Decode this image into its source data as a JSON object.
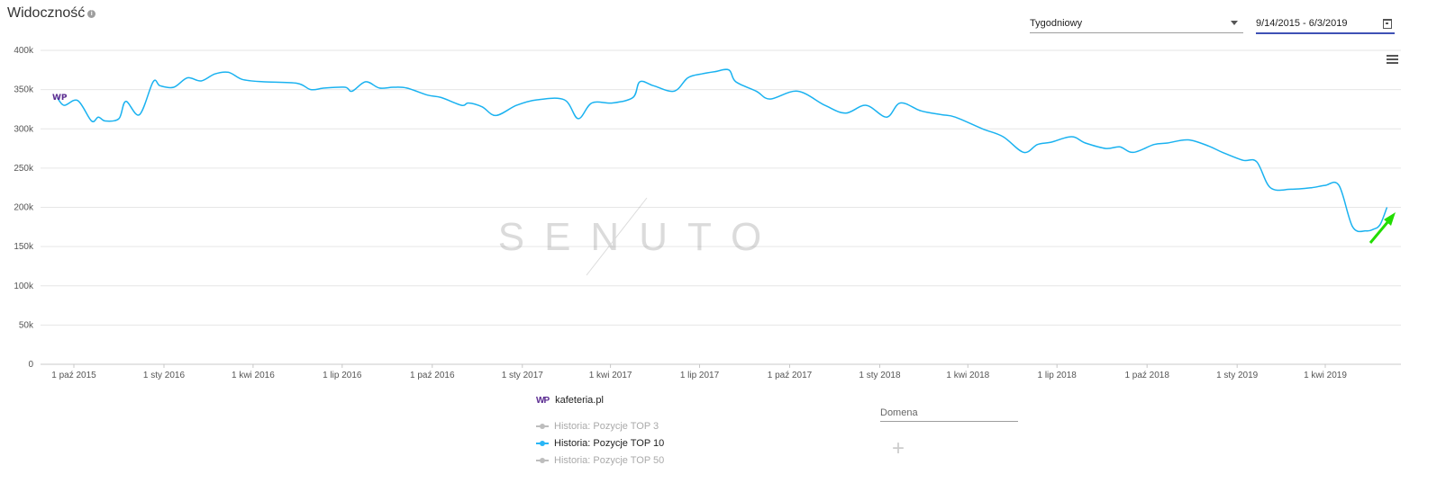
{
  "header": {
    "title": "Widoczność",
    "info_icon": "info-icon"
  },
  "controls": {
    "period_value": "Tygodniowy",
    "date_range_value": "9/14/2015 - 6/3/2019",
    "calendar_icon": "calendar-icon",
    "menu_icon": "hamburger-menu-icon"
  },
  "watermark": "SENUTO",
  "legend": {
    "site": "kafeteria.pl",
    "site_logo_text": "WP",
    "items": [
      {
        "label": "Historia: Pozycje TOP 3",
        "active": false,
        "color": "#bdbdbd"
      },
      {
        "label": "Historia: Pozycje TOP 10",
        "active": true,
        "color": "#29b6f6"
      },
      {
        "label": "Historia: Pozycje TOP 50",
        "active": false,
        "color": "#bdbdbd"
      }
    ]
  },
  "domain_field": {
    "placeholder": "Domena"
  },
  "add_button": "+",
  "colors": {
    "line": "#1ab2f0",
    "arrow": "#22dd00",
    "grid": "#e6e6e6",
    "accent": "#3f51b5"
  },
  "chart_data": {
    "type": "line",
    "title": "",
    "xlabel": "",
    "ylabel": "",
    "ylim": [
      0,
      400000
    ],
    "y_ticks": [
      "0",
      "50k",
      "100k",
      "150k",
      "200k",
      "250k",
      "300k",
      "350k",
      "400k"
    ],
    "x_ticks": [
      "1 paź 2015",
      "1 sty 2016",
      "1 kwi 2016",
      "1 lip 2016",
      "1 paź 2016",
      "1 sty 2017",
      "1 kwi 2017",
      "1 lip 2017",
      "1 paź 2017",
      "1 sty 2018",
      "1 kwi 2018",
      "1 lip 2018",
      "1 paź 2018",
      "1 sty 2019",
      "1 kwi 2019"
    ],
    "x_tick_dates": [
      "2015-10-01",
      "2016-01-01",
      "2016-04-01",
      "2016-07-01",
      "2016-10-01",
      "2017-01-01",
      "2017-04-01",
      "2017-07-01",
      "2017-10-01",
      "2018-01-01",
      "2018-04-01",
      "2018-07-01",
      "2018-10-01",
      "2019-01-01",
      "2019-04-01"
    ],
    "grid": true,
    "series": [
      {
        "name": "Historia: Pozycje TOP 10",
        "color": "#1ab2f0",
        "points": [
          [
            "2015-09-14",
            340000
          ],
          [
            "2015-09-21",
            330000
          ],
          [
            "2015-10-05",
            336000
          ],
          [
            "2015-10-19",
            310000
          ],
          [
            "2015-10-26",
            315000
          ],
          [
            "2015-11-02",
            310000
          ],
          [
            "2015-11-16",
            313000
          ],
          [
            "2015-11-23",
            335000
          ],
          [
            "2015-12-07",
            318000
          ],
          [
            "2015-12-21",
            360000
          ],
          [
            "2015-12-28",
            355000
          ],
          [
            "2016-01-11",
            353000
          ],
          [
            "2016-01-25",
            365000
          ],
          [
            "2016-02-08",
            361000
          ],
          [
            "2016-02-22",
            370000
          ],
          [
            "2016-03-07",
            372000
          ],
          [
            "2016-03-21",
            363000
          ],
          [
            "2016-04-11",
            360000
          ],
          [
            "2016-05-16",
            358000
          ],
          [
            "2016-05-30",
            350000
          ],
          [
            "2016-06-13",
            352000
          ],
          [
            "2016-07-04",
            353000
          ],
          [
            "2016-07-11",
            348000
          ],
          [
            "2016-07-25",
            360000
          ],
          [
            "2016-08-08",
            352000
          ],
          [
            "2016-08-22",
            353000
          ],
          [
            "2016-09-05",
            352000
          ],
          [
            "2016-09-26",
            343000
          ],
          [
            "2016-10-10",
            340000
          ],
          [
            "2016-10-31",
            330000
          ],
          [
            "2016-11-07",
            333000
          ],
          [
            "2016-11-21",
            328000
          ],
          [
            "2016-12-05",
            317000
          ],
          [
            "2016-12-26",
            330000
          ],
          [
            "2017-01-16",
            337000
          ],
          [
            "2017-02-13",
            337000
          ],
          [
            "2017-02-27",
            313000
          ],
          [
            "2017-03-13",
            333000
          ],
          [
            "2017-04-03",
            333000
          ],
          [
            "2017-04-24",
            340000
          ],
          [
            "2017-05-01",
            360000
          ],
          [
            "2017-05-15",
            355000
          ],
          [
            "2017-06-05",
            348000
          ],
          [
            "2017-06-19",
            365000
          ],
          [
            "2017-07-03",
            370000
          ],
          [
            "2017-07-17",
            373000
          ],
          [
            "2017-07-31",
            375000
          ],
          [
            "2017-08-07",
            360000
          ],
          [
            "2017-08-28",
            348000
          ],
          [
            "2017-09-11",
            338000
          ],
          [
            "2017-10-09",
            348000
          ],
          [
            "2017-11-06",
            330000
          ],
          [
            "2017-11-27",
            320000
          ],
          [
            "2017-12-18",
            330000
          ],
          [
            "2018-01-08",
            315000
          ],
          [
            "2018-01-22",
            333000
          ],
          [
            "2018-02-12",
            323000
          ],
          [
            "2018-03-05",
            318000
          ],
          [
            "2018-03-19",
            315000
          ],
          [
            "2018-04-16",
            300000
          ],
          [
            "2018-05-07",
            290000
          ],
          [
            "2018-05-28",
            270000
          ],
          [
            "2018-06-11",
            280000
          ],
          [
            "2018-06-25",
            283000
          ],
          [
            "2018-07-16",
            290000
          ],
          [
            "2018-07-30",
            282000
          ],
          [
            "2018-08-20",
            275000
          ],
          [
            "2018-09-03",
            277000
          ],
          [
            "2018-09-17",
            270000
          ],
          [
            "2018-10-08",
            280000
          ],
          [
            "2018-10-22",
            282000
          ],
          [
            "2018-11-12",
            286000
          ],
          [
            "2018-12-03",
            278000
          ],
          [
            "2018-12-17",
            270000
          ],
          [
            "2019-01-07",
            260000
          ],
          [
            "2019-01-21",
            258000
          ],
          [
            "2019-02-04",
            225000
          ],
          [
            "2019-02-25",
            223000
          ],
          [
            "2019-03-18",
            225000
          ],
          [
            "2019-04-01",
            228000
          ],
          [
            "2019-04-15",
            228000
          ],
          [
            "2019-04-29",
            175000
          ],
          [
            "2019-05-13",
            170000
          ],
          [
            "2019-05-20",
            172000
          ],
          [
            "2019-05-27",
            178000
          ],
          [
            "2019-06-03",
            200000
          ]
        ]
      }
    ]
  }
}
